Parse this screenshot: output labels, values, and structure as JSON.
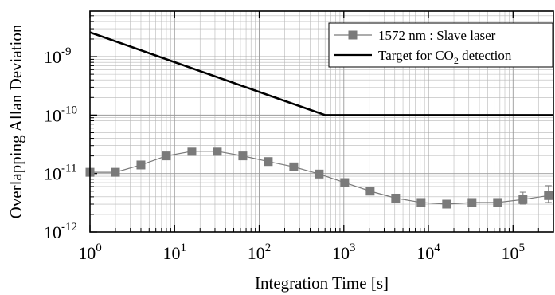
{
  "chart_data": {
    "type": "line",
    "xscale": "log",
    "yscale": "log",
    "xlim": [
      1,
      300000
    ],
    "ylim": [
      1e-12,
      6e-09
    ],
    "xlabel": "Integration Time  [s]",
    "ylabel": "Overlapping Allan Deviation",
    "x_ticks": [
      {
        "value": 1,
        "base": "10",
        "exp": "0"
      },
      {
        "value": 10,
        "base": "10",
        "exp": "1"
      },
      {
        "value": 100,
        "base": "10",
        "exp": "2"
      },
      {
        "value": 1000,
        "base": "10",
        "exp": "3"
      },
      {
        "value": 10000,
        "base": "10",
        "exp": "4"
      },
      {
        "value": 100000,
        "base": "10",
        "exp": "5"
      }
    ],
    "y_ticks": [
      {
        "value": 1e-12,
        "base": "10",
        "exp": "-12"
      },
      {
        "value": 1e-11,
        "base": "10",
        "exp": "-11"
      },
      {
        "value": 1e-10,
        "base": "10",
        "exp": "-10"
      },
      {
        "value": 1e-09,
        "base": "10",
        "exp": "-9"
      }
    ],
    "grid": true,
    "legend_position": "top-right",
    "series": [
      {
        "name": "1572 nm : Slave laser",
        "color": "#7a7a7a",
        "marker": "square",
        "x": [
          1,
          2,
          4,
          8,
          16,
          32,
          64,
          128,
          256,
          512,
          1024,
          2048,
          4096,
          8192,
          16384,
          32768,
          65536,
          131072,
          262144
        ],
        "y": [
          1.05e-11,
          1.05e-11,
          1.4e-11,
          2e-11,
          2.4e-11,
          2.4e-11,
          2e-11,
          1.6e-11,
          1.3e-11,
          9.8e-12,
          7e-12,
          5e-12,
          3.8e-12,
          3.2e-12,
          3e-12,
          3.2e-12,
          3.2e-12,
          3.6e-12,
          4.2e-12
        ],
        "err_plus": [
          0,
          0,
          0,
          0,
          0,
          0,
          0,
          0,
          0,
          0,
          0,
          0,
          0,
          0,
          0,
          0,
          0,
          1.2e-12,
          2e-12
        ],
        "err_minus": [
          0,
          0,
          0,
          0,
          0,
          0,
          0,
          0,
          0,
          0,
          0,
          0,
          0,
          0,
          0,
          0,
          0,
          6e-13,
          1e-12
        ]
      },
      {
        "name_parts": [
          "Target for CO",
          "2",
          " detection"
        ],
        "color": "#000000",
        "marker": "none",
        "x": [
          1,
          600,
          300000
        ],
        "y": [
          2.6e-09,
          1e-10,
          1e-10
        ]
      }
    ]
  }
}
